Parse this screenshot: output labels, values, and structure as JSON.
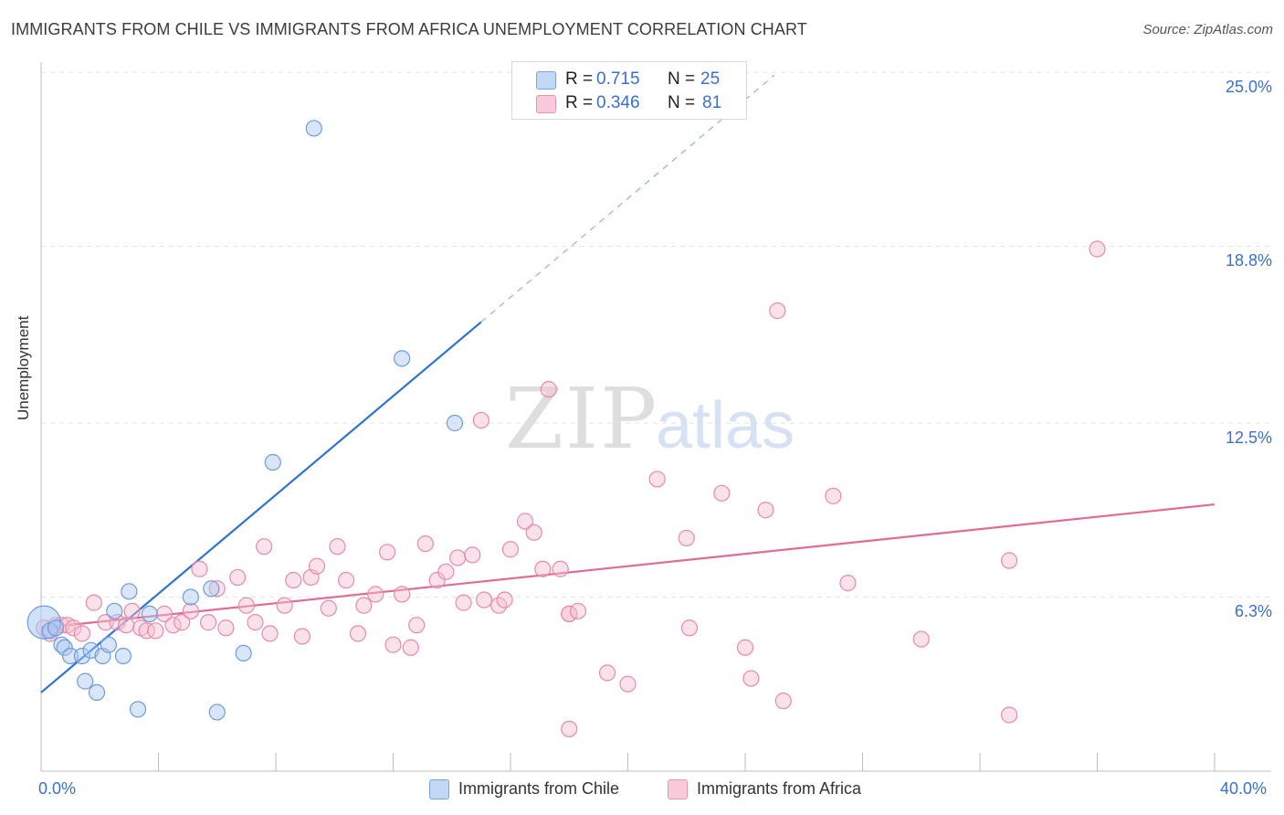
{
  "title": "IMMIGRANTS FROM CHILE VS IMMIGRANTS FROM AFRICA UNEMPLOYMENT CORRELATION CHART",
  "source": "Source: ZipAtlas.com",
  "watermark": {
    "zip": "ZIP",
    "atlas": "atlas"
  },
  "legend": {
    "chile": {
      "r_label": "R =",
      "r_value": "0.715",
      "n_label": "N =",
      "n_value": "25"
    },
    "africa": {
      "r_label": "R =",
      "r_value": "0.346",
      "n_label": "N =",
      "n_value": "81"
    }
  },
  "colors": {
    "chile_fill": "#aac8f5",
    "chile_stroke": "#6e9be0",
    "chile_line": "#2f73d0",
    "africa_fill": "#f7bfd0",
    "africa_stroke": "#e88aaa",
    "africa_line": "#e16b96",
    "grid": "#e3e3e3",
    "axis_text": "#3a6fd6"
  },
  "chart_data": {
    "type": "scatter",
    "title": "IMMIGRANTS FROM CHILE VS IMMIGRANTS FROM AFRICA UNEMPLOYMENT CORRELATION CHART",
    "xlabel": "",
    "ylabel": "Unemployment",
    "xlim": [
      0,
      40
    ],
    "ylim": [
      0,
      25
    ],
    "x_tick_labels": [
      "0.0%",
      "40.0%"
    ],
    "y_ticks": [
      6.3,
      12.5,
      18.8,
      25.0
    ],
    "y_tick_labels": [
      "6.3%",
      "12.5%",
      "18.8%",
      "25.0%"
    ],
    "grid": true,
    "legend_position": "bottom",
    "series": [
      {
        "name": "Immigrants from Chile",
        "points": [
          [
            0.1,
            5.4
          ],
          [
            0.3,
            5.1
          ],
          [
            0.5,
            5.2
          ],
          [
            0.7,
            4.6
          ],
          [
            0.8,
            4.5
          ],
          [
            1.0,
            4.2
          ],
          [
            1.4,
            4.2
          ],
          [
            1.5,
            3.3
          ],
          [
            1.7,
            4.4
          ],
          [
            1.9,
            2.9
          ],
          [
            2.1,
            4.2
          ],
          [
            2.3,
            4.6
          ],
          [
            2.5,
            5.8
          ],
          [
            2.8,
            4.2
          ],
          [
            3.0,
            6.5
          ],
          [
            3.3,
            2.3
          ],
          [
            3.7,
            5.7
          ],
          [
            5.1,
            6.3
          ],
          [
            5.8,
            6.6
          ],
          [
            6.9,
            4.3
          ],
          [
            6.0,
            2.2
          ],
          [
            7.9,
            11.1
          ],
          [
            9.3,
            23.0
          ],
          [
            12.3,
            14.8
          ],
          [
            14.1,
            12.5
          ]
        ],
        "trend": {
          "x0": 0,
          "y0": 2.9,
          "x1": 15.0,
          "y1": 16.1,
          "dash_to_x": 25.0,
          "dash_to_y": 24.9
        }
      },
      {
        "name": "Immigrants from Africa",
        "points": [
          [
            0.1,
            5.2
          ],
          [
            0.3,
            5.0
          ],
          [
            0.5,
            5.3
          ],
          [
            0.7,
            5.3
          ],
          [
            0.9,
            5.3
          ],
          [
            1.1,
            5.2
          ],
          [
            1.4,
            5.0
          ],
          [
            1.8,
            6.1
          ],
          [
            2.2,
            5.4
          ],
          [
            2.6,
            5.4
          ],
          [
            2.9,
            5.3
          ],
          [
            3.1,
            5.8
          ],
          [
            3.4,
            5.2
          ],
          [
            3.6,
            5.1
          ],
          [
            3.9,
            5.1
          ],
          [
            4.2,
            5.7
          ],
          [
            4.5,
            5.3
          ],
          [
            4.8,
            5.4
          ],
          [
            5.1,
            5.8
          ],
          [
            5.4,
            7.3
          ],
          [
            5.7,
            5.4
          ],
          [
            6.0,
            6.6
          ],
          [
            6.3,
            5.2
          ],
          [
            6.7,
            7.0
          ],
          [
            7.0,
            6.0
          ],
          [
            7.3,
            5.4
          ],
          [
            7.6,
            8.1
          ],
          [
            7.8,
            5.0
          ],
          [
            8.3,
            6.0
          ],
          [
            8.6,
            6.9
          ],
          [
            8.9,
            4.9
          ],
          [
            9.2,
            7.0
          ],
          [
            9.4,
            7.4
          ],
          [
            9.8,
            5.9
          ],
          [
            10.1,
            8.1
          ],
          [
            10.4,
            6.9
          ],
          [
            10.8,
            5.0
          ],
          [
            11.0,
            6.0
          ],
          [
            11.4,
            6.4
          ],
          [
            11.8,
            7.9
          ],
          [
            12.0,
            4.6
          ],
          [
            12.3,
            6.4
          ],
          [
            12.6,
            4.5
          ],
          [
            12.8,
            5.3
          ],
          [
            13.1,
            8.2
          ],
          [
            13.5,
            6.9
          ],
          [
            13.8,
            7.2
          ],
          [
            14.2,
            7.7
          ],
          [
            14.4,
            6.1
          ],
          [
            14.7,
            7.8
          ],
          [
            15.0,
            12.6
          ],
          [
            15.1,
            6.2
          ],
          [
            15.6,
            6.0
          ],
          [
            15.8,
            6.2
          ],
          [
            16.0,
            8.0
          ],
          [
            16.5,
            9.0
          ],
          [
            16.8,
            8.6
          ],
          [
            17.1,
            7.3
          ],
          [
            17.3,
            13.7
          ],
          [
            17.7,
            7.3
          ],
          [
            18.0,
            5.7
          ],
          [
            18.0,
            1.6
          ],
          [
            18.0,
            5.7
          ],
          [
            18.3,
            5.8
          ],
          [
            19.3,
            3.6
          ],
          [
            20.0,
            3.2
          ],
          [
            21.0,
            10.5
          ],
          [
            22.0,
            8.4
          ],
          [
            22.1,
            5.2
          ],
          [
            23.2,
            10.0
          ],
          [
            24.0,
            4.5
          ],
          [
            24.2,
            3.4
          ],
          [
            24.7,
            9.4
          ],
          [
            25.1,
            16.5
          ],
          [
            25.3,
            2.6
          ],
          [
            27.0,
            9.9
          ],
          [
            27.5,
            6.8
          ],
          [
            30.0,
            4.8
          ],
          [
            33.0,
            7.6
          ],
          [
            33.0,
            2.1
          ],
          [
            36.0,
            18.7
          ]
        ],
        "trend": {
          "x0": 0,
          "y0": 5.2,
          "x1": 40.0,
          "y1": 9.6
        }
      }
    ]
  }
}
